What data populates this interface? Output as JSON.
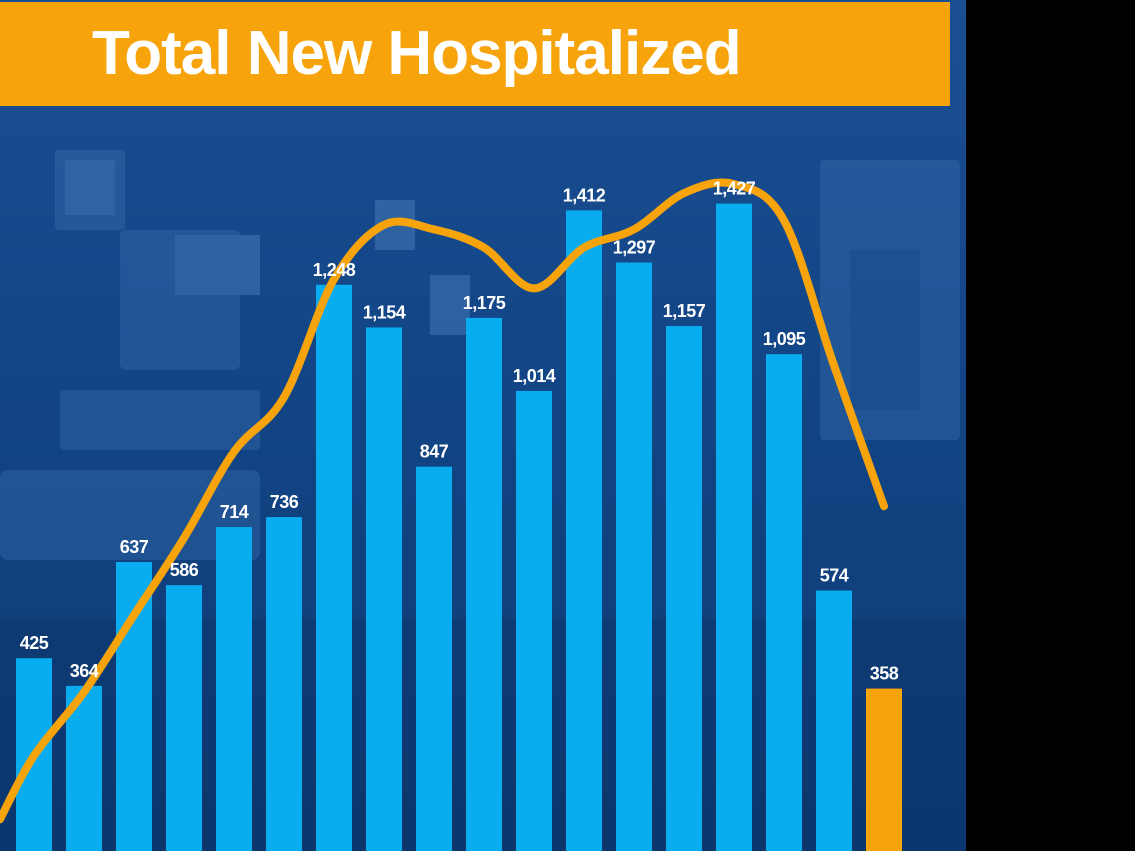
{
  "header": {
    "title": "Total New Hospitalized"
  },
  "colors": {
    "banner": "#f7a30c",
    "bar": "#08acef",
    "highlight_bar": "#f7a30c",
    "trend_line": "#f7a30c",
    "label": "#ffffff"
  },
  "chart_data": {
    "type": "bar",
    "title": "Total New Hospitalized",
    "xlabel": "",
    "ylabel": "",
    "ylim": [
      0,
      1500
    ],
    "grid": false,
    "legend": "none",
    "values": [
      425,
      364,
      637,
      586,
      714,
      736,
      1248,
      1154,
      847,
      1175,
      1014,
      1412,
      1297,
      1157,
      1427,
      1095,
      574,
      358
    ],
    "labels": [
      "425",
      "364",
      "637",
      "586",
      "714",
      "736",
      "1,248",
      "1,154",
      "847",
      "1,175",
      "1,014",
      "1,412",
      "1,297",
      "1,157",
      "1,427",
      "1,095",
      "574",
      "358"
    ],
    "highlight_index": 17,
    "trend_line": {
      "type": "smoothed-average",
      "values": [
        210,
        350,
        520,
        690,
        880,
        1000,
        1260,
        1380,
        1370,
        1330,
        1240,
        1330,
        1370,
        1450,
        1470,
        1390,
        1070,
        760
      ]
    }
  }
}
